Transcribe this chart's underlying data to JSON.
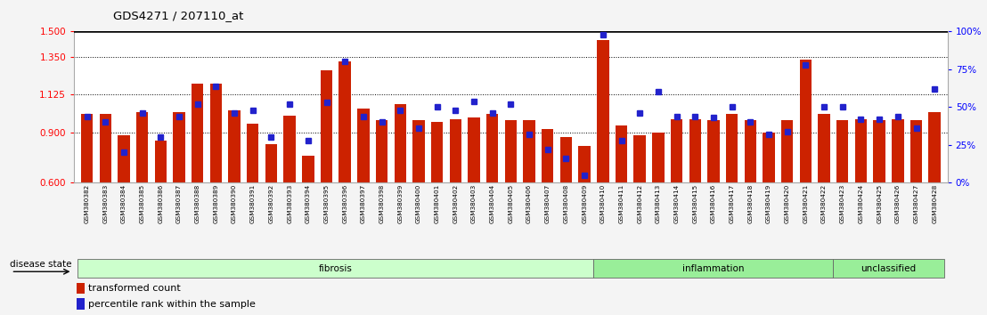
{
  "title": "GDS4271 / 207110_at",
  "ylim": [
    0.6,
    1.5
  ],
  "yticks_left": [
    0.6,
    0.9,
    1.125,
    1.35,
    1.5
  ],
  "yticks_right": [
    0,
    25,
    50,
    75,
    100
  ],
  "hlines": [
    0.9,
    1.125,
    1.35
  ],
  "bar_color": "#cc2200",
  "dot_color": "#2222cc",
  "samples": [
    "GSM380382",
    "GSM380383",
    "GSM380384",
    "GSM380385",
    "GSM380386",
    "GSM380387",
    "GSM380388",
    "GSM380389",
    "GSM380390",
    "GSM380391",
    "GSM380392",
    "GSM380393",
    "GSM380394",
    "GSM380395",
    "GSM380396",
    "GSM380397",
    "GSM380398",
    "GSM380399",
    "GSM380400",
    "GSM380401",
    "GSM380402",
    "GSM380403",
    "GSM380404",
    "GSM380405",
    "GSM380406",
    "GSM380407",
    "GSM380408",
    "GSM380409",
    "GSM380410",
    "GSM380411",
    "GSM380412",
    "GSM380413",
    "GSM380414",
    "GSM380415",
    "GSM380416",
    "GSM380417",
    "GSM380418",
    "GSM380419",
    "GSM380420",
    "GSM380421",
    "GSM380422",
    "GSM380423",
    "GSM380424",
    "GSM380425",
    "GSM380426",
    "GSM380427",
    "GSM380428"
  ],
  "bar_values": [
    1.01,
    1.01,
    0.88,
    1.02,
    0.85,
    1.02,
    1.19,
    1.19,
    1.03,
    0.95,
    0.83,
    1.0,
    0.76,
    1.27,
    1.32,
    1.04,
    0.97,
    1.07,
    0.97,
    0.96,
    0.98,
    0.99,
    1.01,
    0.97,
    0.97,
    0.92,
    0.87,
    0.82,
    1.45,
    0.94,
    0.88,
    0.9,
    0.98,
    0.98,
    0.97,
    1.01,
    0.97,
    0.9,
    0.97,
    1.33,
    1.01,
    0.97,
    0.98,
    0.97,
    0.98,
    0.97,
    1.02
  ],
  "percentile_values": [
    44,
    40,
    20,
    46,
    30,
    44,
    52,
    64,
    46,
    48,
    30,
    52,
    28,
    53,
    80,
    44,
    40,
    48,
    36,
    50,
    48,
    54,
    46,
    52,
    32,
    22,
    16,
    5,
    98,
    28,
    46,
    60,
    44,
    44,
    43,
    50,
    40,
    32,
    34,
    78,
    50,
    50,
    42,
    42,
    44,
    36,
    62
  ],
  "group_defs": [
    {
      "label": "fibrosis",
      "start": 0,
      "end": 28,
      "facecolor": "#ccffcc"
    },
    {
      "label": "inflammation",
      "start": 28,
      "end": 41,
      "facecolor": "#88ee88"
    },
    {
      "label": "unclassified",
      "start": 41,
      "end": 47,
      "facecolor": "#88ee88"
    }
  ],
  "bg_color": "#f0f0f0",
  "plot_bg": "#ffffff"
}
